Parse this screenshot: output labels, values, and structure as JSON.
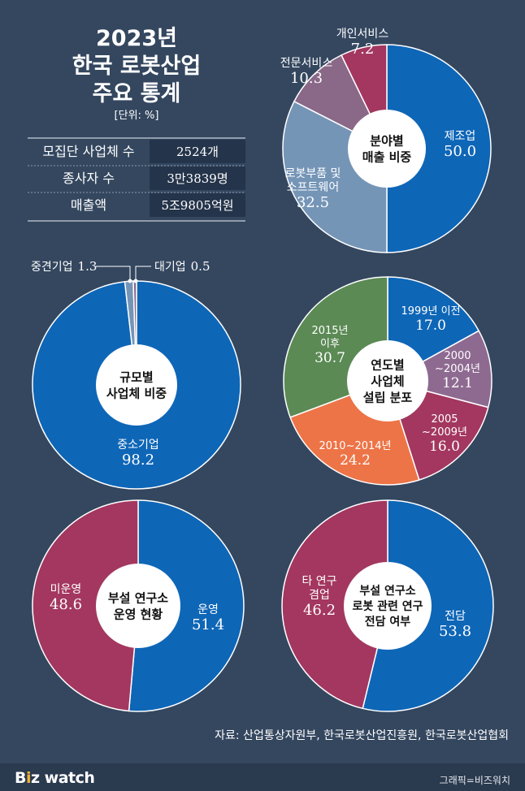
{
  "header": {
    "title_lines": [
      "2023년",
      "한국 로봇산업",
      "주요 통계"
    ],
    "unit": "[단위: %]"
  },
  "stats_table": [
    {
      "label": "모집단 사업체 수",
      "value": "2524개"
    },
    {
      "label": "종사자 수",
      "value": "3만3839명"
    },
    {
      "label": "매출액",
      "value": "5조9805억원"
    }
  ],
  "source": "자료: 산업통상자원부, 한국로봇산업진흥원, 한국로봇산업협회",
  "footer": {
    "logo_b": "B",
    "logo_accent": "i",
    "logo_z": "z",
    "logo_watch": " watch",
    "credit": "그래픽=비즈워치"
  },
  "colors": {
    "background": "#34475f",
    "blue": "#0e66b7",
    "slate": "#7595b7",
    "mauve": "#8a6888",
    "crimson": "#a3375f",
    "green": "#5b8a55",
    "orange": "#ed7447",
    "purple": "#8e6a91"
  },
  "chart_data": [
    {
      "type": "pie",
      "center_label": [
        "분야별",
        "매출 비중"
      ],
      "slices": [
        {
          "label": [
            "제조업"
          ],
          "value": 50.0,
          "display": "50.0",
          "color": "#0e66b7"
        },
        {
          "label": [
            "로봇부품 및",
            "소프트웨어"
          ],
          "value": 32.5,
          "display": "32.5",
          "color": "#7595b7"
        },
        {
          "label": [
            "전문서비스"
          ],
          "value": 10.3,
          "display": "10.3",
          "color": "#8a6888"
        },
        {
          "label": [
            "개인서비스"
          ],
          "value": 7.2,
          "display": "7.2",
          "color": "#a3375f"
        }
      ]
    },
    {
      "type": "pie",
      "center_label": [
        "규모별",
        "사업체 비중"
      ],
      "slices": [
        {
          "label": [
            "중소기업"
          ],
          "value": 98.2,
          "display": "98.2",
          "color": "#0e66b7"
        },
        {
          "label": [
            "중견기업"
          ],
          "value": 1.3,
          "display": "1.3",
          "color": "#7595b7"
        },
        {
          "label": [
            "대기업"
          ],
          "value": 0.5,
          "display": "0.5",
          "color": "#8a6888"
        }
      ]
    },
    {
      "type": "pie",
      "center_label": [
        "연도별",
        "사업체",
        "설립 분포"
      ],
      "slices": [
        {
          "label": [
            "1999년 이전"
          ],
          "value": 17.0,
          "display": "17.0",
          "color": "#0e66b7"
        },
        {
          "label": [
            "2000",
            "~2004년"
          ],
          "value": 12.1,
          "display": "12.1",
          "color": "#8e6a91"
        },
        {
          "label": [
            "2005",
            "~2009년"
          ],
          "value": 16.0,
          "display": "16.0",
          "color": "#a3375f"
        },
        {
          "label": [
            "2010~2014년"
          ],
          "value": 24.2,
          "display": "24.2",
          "color": "#ed7447"
        },
        {
          "label": [
            "2015년",
            "이후"
          ],
          "value": 30.7,
          "display": "30.7",
          "color": "#5b8a55"
        }
      ]
    },
    {
      "type": "pie",
      "center_label": [
        "부설 연구소",
        "운영 현황"
      ],
      "slices": [
        {
          "label": [
            "운영"
          ],
          "value": 51.4,
          "display": "51.4",
          "color": "#0e66b7"
        },
        {
          "label": [
            "미운영"
          ],
          "value": 48.6,
          "display": "48.6",
          "color": "#a3375f"
        }
      ]
    },
    {
      "type": "pie",
      "center_label": [
        "부설 연구소",
        "로봇 관련 연구",
        "전담 여부"
      ],
      "slices": [
        {
          "label": [
            "전담"
          ],
          "value": 53.8,
          "display": "53.8",
          "color": "#0e66b7"
        },
        {
          "label": [
            "타 연구",
            "겸업"
          ],
          "value": 46.2,
          "display": "46.2",
          "color": "#a3375f"
        }
      ]
    }
  ]
}
